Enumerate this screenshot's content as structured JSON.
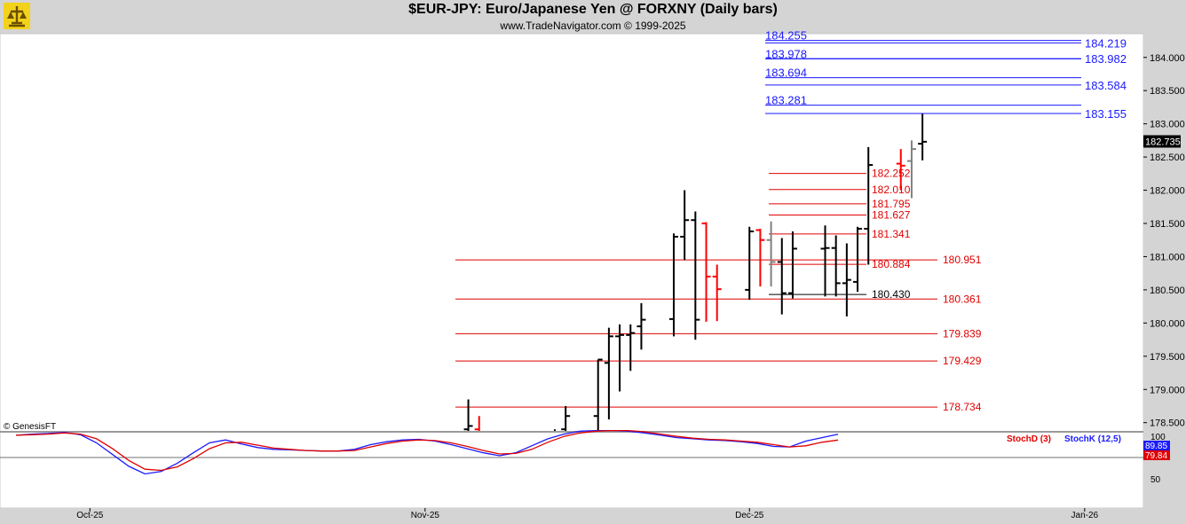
{
  "header": {
    "title": "$EUR-JPY:  Euro/Japanese Yen @ FORXNY  (Daily bars)",
    "subtitle": "www.TradeNavigator.com © 1999-2025",
    "logo_icon": "trade-navigator-logo-icon"
  },
  "watermark": "© GenesisFT",
  "colors": {
    "up_bar": "#000000",
    "down_bar": "#ff0000",
    "neutral_bar": "#808080",
    "fib_blue": "#1a1aff",
    "fib_red": "#e00000",
    "stoch_d": "#e00000",
    "stoch_k": "#1a1aff",
    "background": "#ffffff",
    "frame": "#d4d4d4"
  },
  "chart_data": [
    {
      "type": "ohlc",
      "title": "$EUR-JPY:  Euro/Japanese Yen @ FORXNY  (Daily bars)",
      "y_ticks": [
        "178.500",
        "179.000",
        "179.500",
        "180.000",
        "180.500",
        "181.000",
        "181.500",
        "182.000",
        "182.500",
        "183.000",
        "183.500",
        "184.000"
      ],
      "x_labels": [
        "Oct-25",
        "Nov-25",
        "Dec-25",
        "Jan-26"
      ],
      "last_price": "182.735",
      "grid": false,
      "bars": [
        {
          "date": "2025-11-05",
          "o": 178.4,
          "h": 178.85,
          "l": 178.0,
          "c": 178.45,
          "color": "up"
        },
        {
          "date": "2025-11-06",
          "o": 178.4,
          "h": 178.6,
          "l": 178.0,
          "c": 178.2,
          "color": "down"
        },
        {
          "date": "2025-11-13",
          "o": 178.3,
          "h": 178.4,
          "l": 178.1,
          "c": 178.3,
          "color": "up"
        },
        {
          "date": "2025-11-14",
          "o": 178.4,
          "h": 178.75,
          "l": 178.2,
          "c": 178.6,
          "color": "up"
        },
        {
          "date": "2025-11-17",
          "o": 178.6,
          "h": 179.45,
          "l": 178.3,
          "c": 179.45,
          "color": "up"
        },
        {
          "date": "2025-11-18",
          "o": 179.4,
          "h": 179.93,
          "l": 178.55,
          "c": 179.8,
          "color": "up"
        },
        {
          "date": "2025-11-19",
          "o": 179.8,
          "h": 179.98,
          "l": 178.97,
          "c": 179.82,
          "color": "up"
        },
        {
          "date": "2025-11-20",
          "o": 179.82,
          "h": 179.98,
          "l": 179.28,
          "c": 179.85,
          "color": "up"
        },
        {
          "date": "2025-11-21",
          "o": 179.95,
          "h": 180.3,
          "l": 179.6,
          "c": 180.05,
          "color": "up"
        },
        {
          "date": "2025-11-24",
          "o": 180.06,
          "h": 181.35,
          "l": 179.8,
          "c": 181.3,
          "color": "up"
        },
        {
          "date": "2025-11-25",
          "o": 181.3,
          "h": 182.0,
          "l": 180.95,
          "c": 181.55,
          "color": "up"
        },
        {
          "date": "2025-11-26",
          "o": 181.55,
          "h": 181.68,
          "l": 179.75,
          "c": 180.05,
          "color": "up"
        },
        {
          "date": "2025-11-27",
          "o": 181.5,
          "h": 181.52,
          "l": 180.02,
          "c": 180.7,
          "color": "down"
        },
        {
          "date": "2025-11-28",
          "o": 180.7,
          "h": 180.88,
          "l": 180.03,
          "c": 180.51,
          "color": "down"
        },
        {
          "date": "2025-12-01",
          "o": 180.5,
          "h": 181.45,
          "l": 180.35,
          "c": 181.38,
          "color": "up"
        },
        {
          "date": "2025-12-02",
          "o": 181.4,
          "h": 181.42,
          "l": 180.55,
          "c": 181.25,
          "color": "down"
        },
        {
          "date": "2025-12-03",
          "o": 181.25,
          "h": 181.53,
          "l": 180.55,
          "c": 180.92,
          "color": "neutral"
        },
        {
          "date": "2025-12-04",
          "o": 180.92,
          "h": 181.28,
          "l": 180.13,
          "c": 180.45,
          "color": "up"
        },
        {
          "date": "2025-12-05",
          "o": 180.45,
          "h": 181.38,
          "l": 180.37,
          "c": 181.12,
          "color": "up"
        },
        {
          "date": "2025-12-08",
          "o": 181.12,
          "h": 181.47,
          "l": 180.4,
          "c": 181.13,
          "color": "up"
        },
        {
          "date": "2025-12-09",
          "o": 181.13,
          "h": 181.32,
          "l": 180.4,
          "c": 180.6,
          "color": "up"
        },
        {
          "date": "2025-12-10",
          "o": 180.6,
          "h": 181.2,
          "l": 180.1,
          "c": 180.65,
          "color": "up"
        },
        {
          "date": "2025-12-11",
          "o": 180.62,
          "h": 181.45,
          "l": 180.47,
          "c": 181.42,
          "color": "up"
        },
        {
          "date": "2025-12-12",
          "o": 181.42,
          "h": 182.65,
          "l": 180.88,
          "c": 182.38,
          "color": "up"
        },
        {
          "date": "2025-12-15",
          "o": 182.4,
          "h": 182.62,
          "l": 182.0,
          "c": 182.37,
          "color": "down"
        },
        {
          "date": "2025-12-16",
          "o": 182.44,
          "h": 182.75,
          "l": 181.88,
          "c": 182.62,
          "color": "neutral"
        },
        {
          "date": "2025-12-17",
          "o": 182.7,
          "h": 183.15,
          "l": 182.45,
          "c": 182.73,
          "color": "up"
        }
      ]
    },
    {
      "type": "fibonacci_levels",
      "blue_labels": [
        "184.255",
        "184.219",
        "183.978",
        "183.982",
        "183.694",
        "183.584",
        "183.281",
        "183.155"
      ],
      "blue_levels": [
        184.255,
        184.219,
        183.978,
        183.982,
        183.694,
        183.584,
        183.281,
        183.155
      ],
      "red_short_labels": [
        "182.252",
        "182.010",
        "181.795",
        "181.627",
        "181.341",
        "180.884"
      ],
      "red_short_levels": [
        182.252,
        182.01,
        181.795,
        181.627,
        181.341,
        180.884
      ],
      "black_level_label": "180.430",
      "black_level": 180.43,
      "red_long_labels": [
        "180.951",
        "180.361",
        "179.839",
        "179.429",
        "178.734"
      ],
      "red_long_levels": [
        180.951,
        180.361,
        179.839,
        179.429,
        178.734
      ]
    },
    {
      "type": "line",
      "indicator": "stochastic",
      "legend": [
        "StochD (3)",
        "StochK (12,5)"
      ],
      "y_tick": "50",
      "y_tick_top": "100",
      "last_values": [
        "89.85",
        "79.84"
      ],
      "series": [
        {
          "name": "StochK (12,5)",
          "color": "stoch_k",
          "values": [
            88,
            90,
            91,
            93,
            89,
            75,
            55,
            35,
            22,
            26,
            40,
            58,
            75,
            80,
            73,
            67,
            64,
            63,
            62,
            61,
            61,
            64,
            72,
            77,
            80,
            81,
            78,
            72,
            65,
            58,
            53,
            58,
            70,
            82,
            90,
            95,
            96,
            96,
            95,
            92,
            88,
            84,
            82,
            80,
            79,
            77,
            74,
            69,
            68,
            78,
            84,
            89.85
          ]
        },
        {
          "name": "StochD (3)",
          "color": "stoch_d",
          "values": [
            88,
            89,
            90,
            92,
            90,
            82,
            65,
            45,
            30,
            28,
            34,
            48,
            65,
            75,
            76,
            71,
            66,
            64,
            62,
            61,
            61,
            62,
            68,
            74,
            78,
            80,
            79,
            75,
            69,
            62,
            56,
            57,
            64,
            76,
            86,
            92,
            95,
            96,
            96,
            94,
            90,
            86,
            83,
            81,
            80,
            78,
            76,
            72,
            68,
            70,
            76,
            79.84
          ]
        }
      ]
    }
  ]
}
